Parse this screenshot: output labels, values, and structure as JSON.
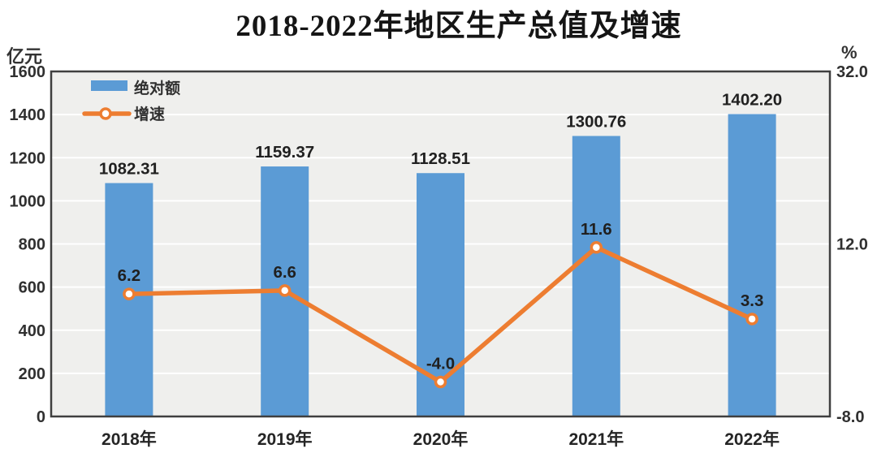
{
  "title": "2018-2022年地区生产总值及增速",
  "chart_data": {
    "type": "combo",
    "categories": [
      "2018年",
      "2019年",
      "2020年",
      "2021年",
      "2022年"
    ],
    "series": [
      {
        "name": "绝对额",
        "type": "bar",
        "axis": "left",
        "unit": "亿元",
        "color": "#5B9BD5",
        "values": [
          1082.31,
          1159.37,
          1128.51,
          1300.76,
          1402.2
        ],
        "labels": [
          "1082.31",
          "1159.37",
          "1128.51",
          "1300.76",
          "1402.20"
        ]
      },
      {
        "name": "增速",
        "type": "line",
        "axis": "right",
        "unit": "%",
        "color": "#ED7D31",
        "values": [
          6.2,
          6.6,
          -4.0,
          11.6,
          3.3
        ],
        "labels": [
          "6.2",
          "6.6",
          "-4.0",
          "11.6",
          "3.3"
        ]
      }
    ],
    "left_axis": {
      "label": "亿元",
      "min": 0,
      "max": 1600,
      "step": 200,
      "ticks": [
        "0",
        "200",
        "400",
        "600",
        "800",
        "1000",
        "1200",
        "1400",
        "1600"
      ]
    },
    "right_axis": {
      "label": "%",
      "min": -8.0,
      "max": 32.0,
      "ticks": [
        {
          "value": 32.0,
          "label": "32.0"
        },
        {
          "value": 12.0,
          "label": "12.0"
        },
        {
          "value": -8.0,
          "label": "-8.0"
        }
      ]
    },
    "legend": {
      "position": "inside-top-left",
      "entries": [
        "绝对额",
        "增速"
      ]
    },
    "grid": true,
    "style": {
      "plot_bg": "#EFEFED",
      "gridline": "#FFFFFF",
      "border": "#3F3F3F",
      "marker_fill": "#FFFFFF",
      "label_color": "#202020",
      "tick_color": "#303030"
    }
  }
}
